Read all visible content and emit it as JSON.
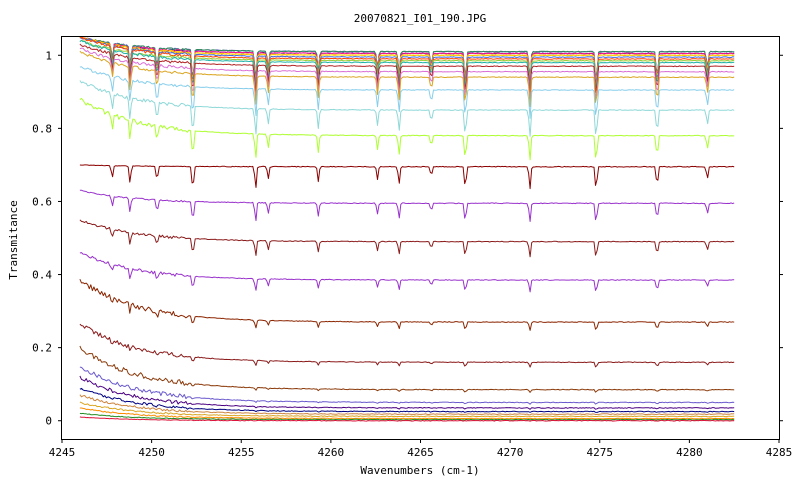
{
  "chart_data": {
    "type": "line",
    "title": "20070821_I01_190.JPG",
    "xlabel": "Wavenumbers (cm-1)",
    "ylabel": "Transmitance",
    "xlim": [
      4245,
      4285
    ],
    "ylim": [
      -0.05,
      1.05
    ],
    "x_data_range": [
      4246,
      4282.5
    ],
    "x_ticks": [
      "4245",
      "4250",
      "4255",
      "4260",
      "4265",
      "4270",
      "4275",
      "4280",
      "4285"
    ],
    "y_ticks": [
      "0",
      "0.2",
      "0.4",
      "0.6",
      "0.8",
      "1"
    ],
    "grid": false,
    "legend": "none",
    "absorption_lines": [
      {
        "x": 4247.8,
        "depth": 0.05
      },
      {
        "x": 4248.8,
        "depth": 0.07
      },
      {
        "x": 4250.3,
        "depth": 0.06
      },
      {
        "x": 4252.3,
        "depth": 0.1
      },
      {
        "x": 4255.8,
        "depth": 0.09
      },
      {
        "x": 4256.5,
        "depth": 0.05
      },
      {
        "x": 4259.3,
        "depth": 0.06
      },
      {
        "x": 4262.6,
        "depth": 0.05
      },
      {
        "x": 4263.8,
        "depth": 0.07
      },
      {
        "x": 4265.6,
        "depth": 0.04
      },
      {
        "x": 4267.5,
        "depth": 0.09
      },
      {
        "x": 4271.1,
        "depth": 0.09
      },
      {
        "x": 4274.8,
        "depth": 0.1
      },
      {
        "x": 4278.2,
        "depth": 0.08
      },
      {
        "x": 4281.0,
        "depth": 0.05
      }
    ],
    "series": [
      {
        "color": "#191970",
        "start": 1.05,
        "end": 1.005
      },
      {
        "color": "#6a5acd",
        "start": 1.05,
        "end": 1.01
      },
      {
        "color": "#2e8b57",
        "start": 1.05,
        "end": 1.01
      },
      {
        "color": "#ff1493",
        "start": 1.05,
        "end": 1.005
      },
      {
        "color": "#ff8c00",
        "start": 1.05,
        "end": 1.0
      },
      {
        "color": "#ffd700",
        "start": 1.05,
        "end": 1.0
      },
      {
        "color": "#4169e1",
        "start": 1.05,
        "end": 0.995
      },
      {
        "color": "#ff4500",
        "start": 1.05,
        "end": 0.99
      },
      {
        "color": "#9acd32",
        "start": 1.04,
        "end": 0.985
      },
      {
        "color": "#20b2aa",
        "start": 1.04,
        "end": 0.98
      },
      {
        "color": "#b22222",
        "start": 1.03,
        "end": 0.97
      },
      {
        "color": "#da70d6",
        "start": 1.02,
        "end": 0.955
      },
      {
        "color": "#daa520",
        "start": 1.01,
        "end": 0.94
      },
      {
        "color": "#87ceeb",
        "start": 0.97,
        "end": 0.905
      },
      {
        "color": "#8fd8d8",
        "start": 0.93,
        "end": 0.85
      },
      {
        "color": "#adff2f",
        "start": 0.88,
        "end": 0.78
      },
      {
        "color": "#8b0000",
        "start": 0.7,
        "end": 0.695
      },
      {
        "color": "#9932cc",
        "start": 0.63,
        "end": 0.595
      },
      {
        "color": "#8b1a1a",
        "start": 0.55,
        "end": 0.49
      },
      {
        "color": "#9932cc",
        "start": 0.46,
        "end": 0.385
      },
      {
        "color": "#8b2500",
        "start": 0.385,
        "end": 0.27
      },
      {
        "color": "#8b1a1a",
        "start": 0.265,
        "end": 0.16
      },
      {
        "color": "#8b3a0a",
        "start": 0.2,
        "end": 0.085
      },
      {
        "color": "#6a5acd",
        "start": 0.15,
        "end": 0.05
      },
      {
        "color": "#4b0082",
        "start": 0.12,
        "end": 0.035
      },
      {
        "color": "#000080",
        "start": 0.09,
        "end": 0.025
      },
      {
        "color": "#cd853f",
        "start": 0.07,
        "end": 0.018
      },
      {
        "color": "#daa520",
        "start": 0.05,
        "end": 0.012
      },
      {
        "color": "#ff8c00",
        "start": 0.035,
        "end": 0.006
      },
      {
        "color": "#228b22",
        "start": 0.02,
        "end": 0.003
      },
      {
        "color": "#dc143c",
        "start": 0.01,
        "end": 0.0
      }
    ]
  }
}
